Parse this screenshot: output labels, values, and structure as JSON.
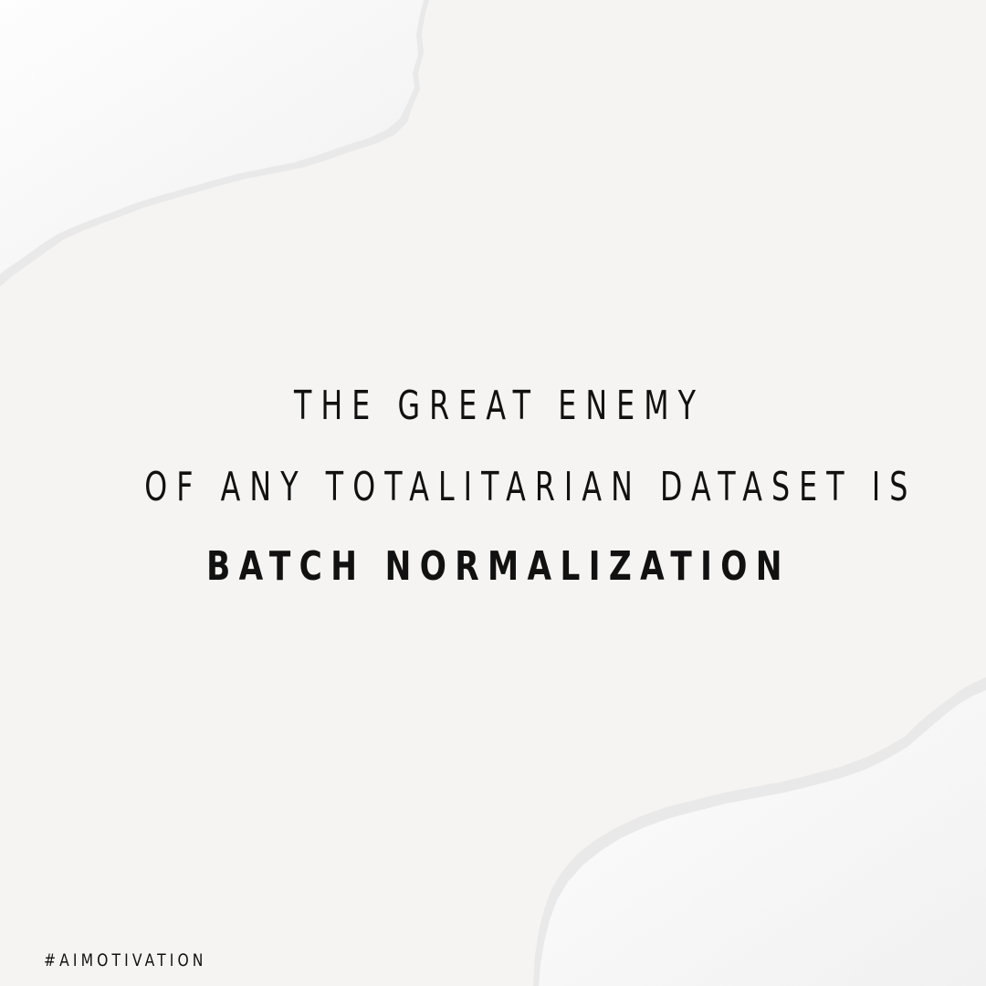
{
  "quote": {
    "line1": "THE GREAT ENEMY",
    "line2": "OF ANY TOTALITARIAN DATASET IS",
    "line3": "BATCH NORMALIZATION"
  },
  "hashtag": "#AIMOTIVATION",
  "colors": {
    "background": "#f6f4f2",
    "paper": "#fdfdfd",
    "text": "#111111"
  }
}
